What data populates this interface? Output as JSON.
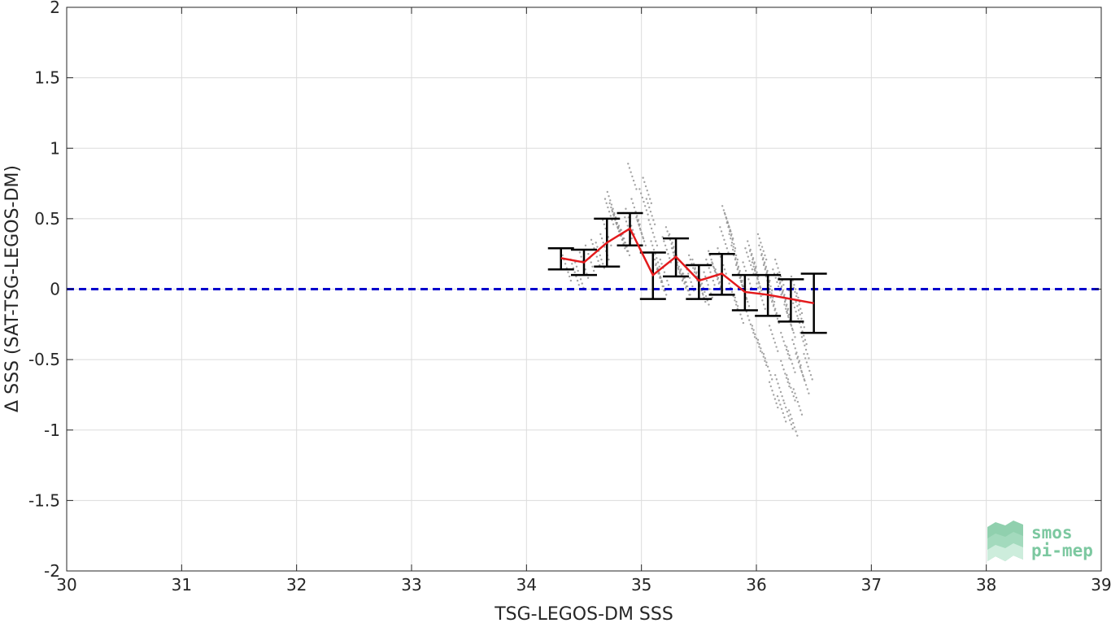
{
  "chart_data": {
    "type": "scatter",
    "xlabel": "TSG-LEGOS-DM SSS",
    "ylabel": "Δ SSS (SAT-TSG-LEGOS-DM)",
    "xlim": [
      30,
      39
    ],
    "ylim": [
      -2,
      2
    ],
    "x_ticks": [
      "30",
      "31",
      "32",
      "33",
      "34",
      "35",
      "36",
      "37",
      "38",
      "39"
    ],
    "y_ticks": [
      "-2",
      "-1.5",
      "-1",
      "-0.5",
      "0",
      "0.5",
      "1",
      "1.5",
      "2"
    ],
    "grid": true,
    "reference_line": {
      "y": 0,
      "style": "dashed",
      "color": "#0000cc"
    },
    "mean_line": {
      "color": "#e31a1c",
      "x": [
        34.3,
        34.5,
        34.7,
        34.9,
        35.1,
        35.3,
        35.5,
        35.7,
        35.9,
        36.1,
        36.3,
        36.5
      ],
      "y": [
        0.22,
        0.19,
        0.33,
        0.43,
        0.1,
        0.23,
        0.06,
        0.11,
        -0.02,
        -0.04,
        -0.07,
        -0.1
      ]
    },
    "error_bars": {
      "color": "#000000",
      "x": [
        34.3,
        34.5,
        34.7,
        34.9,
        35.1,
        35.3,
        35.5,
        35.7,
        35.9,
        36.1,
        36.3,
        36.5
      ],
      "lower": [
        0.14,
        0.1,
        0.16,
        0.31,
        -0.07,
        0.09,
        -0.07,
        -0.04,
        -0.15,
        -0.19,
        -0.23,
        -0.31
      ],
      "upper": [
        0.29,
        0.28,
        0.5,
        0.54,
        0.26,
        0.36,
        0.17,
        0.25,
        0.1,
        0.1,
        0.07,
        0.11
      ]
    },
    "scatter_color": "#8c8c8c",
    "scatter_points": [
      [
        34.35,
        0.15
      ],
      [
        34.42,
        0.12
      ],
      [
        34.46,
        0.1
      ],
      [
        34.5,
        0.17
      ],
      [
        34.55,
        0.22
      ],
      [
        34.6,
        0.26
      ],
      [
        34.64,
        0.24
      ],
      [
        34.68,
        0.3
      ],
      [
        34.7,
        0.4
      ],
      [
        34.72,
        0.55
      ],
      [
        34.74,
        0.6
      ],
      [
        34.76,
        0.52
      ],
      [
        34.78,
        0.47
      ],
      [
        34.8,
        0.44
      ],
      [
        34.82,
        0.38
      ],
      [
        34.84,
        0.36
      ],
      [
        34.86,
        0.33
      ],
      [
        34.88,
        0.45
      ],
      [
        34.9,
        0.48
      ],
      [
        34.92,
        0.8
      ],
      [
        34.95,
        0.55
      ],
      [
        34.98,
        0.45
      ],
      [
        35.0,
        0.4
      ],
      [
        35.02,
        0.62
      ],
      [
        35.05,
        0.7
      ],
      [
        35.08,
        0.55
      ],
      [
        35.1,
        0.4
      ],
      [
        35.12,
        0.25
      ],
      [
        35.14,
        0.15
      ],
      [
        35.16,
        0.08
      ],
      [
        35.18,
        0.05
      ],
      [
        35.2,
        0.12
      ],
      [
        35.22,
        0.28
      ],
      [
        35.25,
        0.35
      ],
      [
        35.28,
        0.3
      ],
      [
        35.3,
        0.2
      ],
      [
        35.32,
        0.15
      ],
      [
        35.35,
        0.1
      ],
      [
        35.38,
        0.05
      ],
      [
        35.4,
        0.02
      ],
      [
        35.42,
        0.08
      ],
      [
        35.45,
        0.15
      ],
      [
        35.48,
        0.12
      ],
      [
        35.5,
        0.05
      ],
      [
        35.52,
        0.0
      ],
      [
        35.55,
        -0.02
      ],
      [
        35.58,
        0.03
      ],
      [
        35.6,
        0.12
      ],
      [
        35.62,
        0.18
      ],
      [
        35.65,
        0.1
      ],
      [
        35.68,
        0.05
      ],
      [
        35.7,
        0.2
      ],
      [
        35.72,
        0.35
      ],
      [
        35.74,
        0.5
      ],
      [
        35.76,
        0.45
      ],
      [
        35.78,
        0.38
      ],
      [
        35.8,
        0.3
      ],
      [
        35.82,
        0.22
      ],
      [
        35.84,
        0.15
      ],
      [
        35.86,
        0.08
      ],
      [
        35.88,
        0.02
      ],
      [
        35.9,
        -0.03
      ],
      [
        35.92,
        0.1
      ],
      [
        35.94,
        0.2
      ],
      [
        35.96,
        0.25
      ],
      [
        35.98,
        0.18
      ],
      [
        36.0,
        0.1
      ],
      [
        36.02,
        0.05
      ],
      [
        36.04,
        -0.05
      ],
      [
        36.05,
        0.3
      ],
      [
        36.06,
        0.22
      ],
      [
        36.08,
        0.15
      ],
      [
        36.1,
        0.08
      ],
      [
        36.12,
        0.0
      ],
      [
        36.14,
        -0.08
      ],
      [
        36.16,
        -0.15
      ],
      [
        36.18,
        0.05
      ],
      [
        36.2,
        0.12
      ],
      [
        36.22,
        0.02
      ],
      [
        36.24,
        -0.05
      ],
      [
        36.26,
        -0.12
      ],
      [
        36.28,
        -0.2
      ],
      [
        36.3,
        -0.25
      ],
      [
        36.32,
        -0.1
      ],
      [
        36.34,
        0.0
      ],
      [
        36.36,
        -0.08
      ],
      [
        36.38,
        -0.18
      ],
      [
        36.4,
        -0.3
      ],
      [
        36.42,
        -0.4
      ],
      [
        36.38,
        -0.55
      ],
      [
        36.35,
        -0.45
      ],
      [
        36.3,
        -0.5
      ],
      [
        36.25,
        -0.6
      ],
      [
        36.2,
        -0.7
      ],
      [
        36.22,
        -0.85
      ],
      [
        36.28,
        -0.9
      ],
      [
        36.32,
        -0.95
      ],
      [
        36.36,
        -0.8
      ],
      [
        36.42,
        -0.65
      ],
      [
        36.1,
        -0.55
      ],
      [
        36.05,
        -0.45
      ],
      [
        36.0,
        -0.35
      ],
      [
        35.95,
        -0.25
      ],
      [
        36.15,
        -0.35
      ],
      [
        36.25,
        -0.4
      ],
      [
        35.85,
        -0.15
      ],
      [
        35.8,
        -0.05
      ],
      [
        36.45,
        -0.55
      ],
      [
        36.15,
        -0.75
      ],
      [
        36.3,
        -0.7
      ]
    ]
  },
  "logo": {
    "line1": "smos",
    "line2": "pi-mep"
  }
}
